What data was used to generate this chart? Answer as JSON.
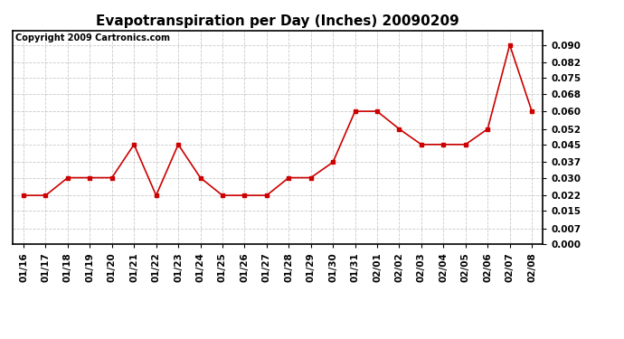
{
  "title": "Evapotranspiration per Day (Inches) 20090209",
  "copyright": "Copyright 2009 Cartronics.com",
  "x_labels": [
    "01/16",
    "01/17",
    "01/18",
    "01/19",
    "01/20",
    "01/21",
    "01/22",
    "01/23",
    "01/24",
    "01/25",
    "01/26",
    "01/27",
    "01/28",
    "01/29",
    "01/30",
    "01/31",
    "02/01",
    "02/02",
    "02/03",
    "02/04",
    "02/05",
    "02/06",
    "02/07",
    "02/08"
  ],
  "y_values": [
    0.022,
    0.022,
    0.03,
    0.03,
    0.03,
    0.045,
    0.022,
    0.045,
    0.03,
    0.022,
    0.022,
    0.022,
    0.03,
    0.03,
    0.037,
    0.06,
    0.06,
    0.052,
    0.045,
    0.045,
    0.045,
    0.052,
    0.09,
    0.06
  ],
  "line_color": "#cc0000",
  "marker": "s",
  "marker_size": 3,
  "ylim": [
    0.0,
    0.0965
  ],
  "yticks": [
    0.0,
    0.007,
    0.015,
    0.022,
    0.03,
    0.037,
    0.045,
    0.052,
    0.06,
    0.068,
    0.075,
    0.082,
    0.09
  ],
  "grid_color": "#bbbbbb",
  "bg_color": "#ffffff",
  "title_fontsize": 11,
  "copyright_fontsize": 7,
  "tick_fontsize": 7.5
}
